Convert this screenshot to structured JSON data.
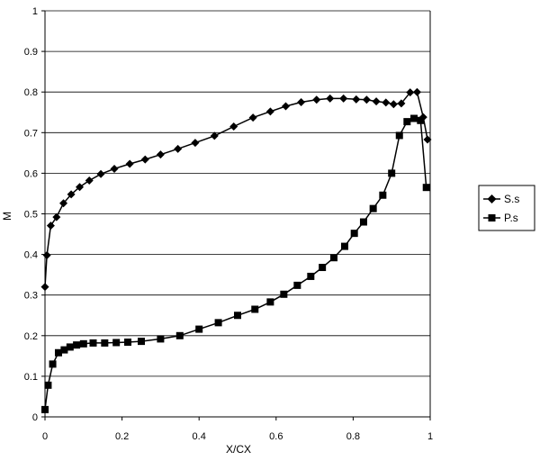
{
  "chart_data": {
    "type": "line",
    "title": "",
    "xlabel": "X/CX",
    "ylabel": "M",
    "xlim": [
      0,
      1
    ],
    "ylim": [
      0,
      1
    ],
    "x_ticks": [
      "0",
      "0.2",
      "0.4",
      "0.6",
      "0.8",
      "1"
    ],
    "y_ticks": [
      "0",
      "0.1",
      "0.2",
      "0.3",
      "0.4",
      "0.5",
      "0.6",
      "0.7",
      "0.8",
      "0.9",
      "1"
    ],
    "grid": "horizontal",
    "legend_position": "right",
    "series": [
      {
        "name": "S.s",
        "marker": "diamond",
        "color": "#000000",
        "x": [
          0.0,
          0.005,
          0.015,
          0.03,
          0.048,
          0.068,
          0.09,
          0.115,
          0.145,
          0.18,
          0.22,
          0.26,
          0.3,
          0.345,
          0.39,
          0.44,
          0.49,
          0.54,
          0.585,
          0.625,
          0.665,
          0.705,
          0.74,
          0.775,
          0.808,
          0.835,
          0.86,
          0.885,
          0.905,
          0.925,
          0.948,
          0.966,
          0.982,
          0.993
        ],
        "y": [
          0.32,
          0.398,
          0.471,
          0.492,
          0.526,
          0.548,
          0.566,
          0.582,
          0.598,
          0.611,
          0.623,
          0.634,
          0.646,
          0.66,
          0.675,
          0.692,
          0.715,
          0.737,
          0.752,
          0.765,
          0.775,
          0.781,
          0.784,
          0.784,
          0.782,
          0.781,
          0.777,
          0.774,
          0.77,
          0.772,
          0.799,
          0.8,
          0.738,
          0.683
        ]
      },
      {
        "name": "P.s",
        "marker": "square",
        "color": "#000000",
        "x": [
          0.0,
          0.008,
          0.02,
          0.035,
          0.05,
          0.065,
          0.082,
          0.1,
          0.125,
          0.155,
          0.185,
          0.215,
          0.25,
          0.3,
          0.35,
          0.4,
          0.45,
          0.5,
          0.545,
          0.585,
          0.62,
          0.655,
          0.69,
          0.72,
          0.75,
          0.778,
          0.803,
          0.827,
          0.852,
          0.877,
          0.9,
          0.92,
          0.94,
          0.958,
          0.975,
          0.99
        ],
        "y": [
          0.018,
          0.078,
          0.13,
          0.158,
          0.165,
          0.172,
          0.177,
          0.18,
          0.182,
          0.182,
          0.183,
          0.184,
          0.186,
          0.192,
          0.2,
          0.216,
          0.232,
          0.25,
          0.265,
          0.283,
          0.302,
          0.324,
          0.346,
          0.368,
          0.392,
          0.42,
          0.452,
          0.48,
          0.513,
          0.546,
          0.6,
          0.693,
          0.727,
          0.735,
          0.73,
          0.565
        ]
      }
    ]
  }
}
